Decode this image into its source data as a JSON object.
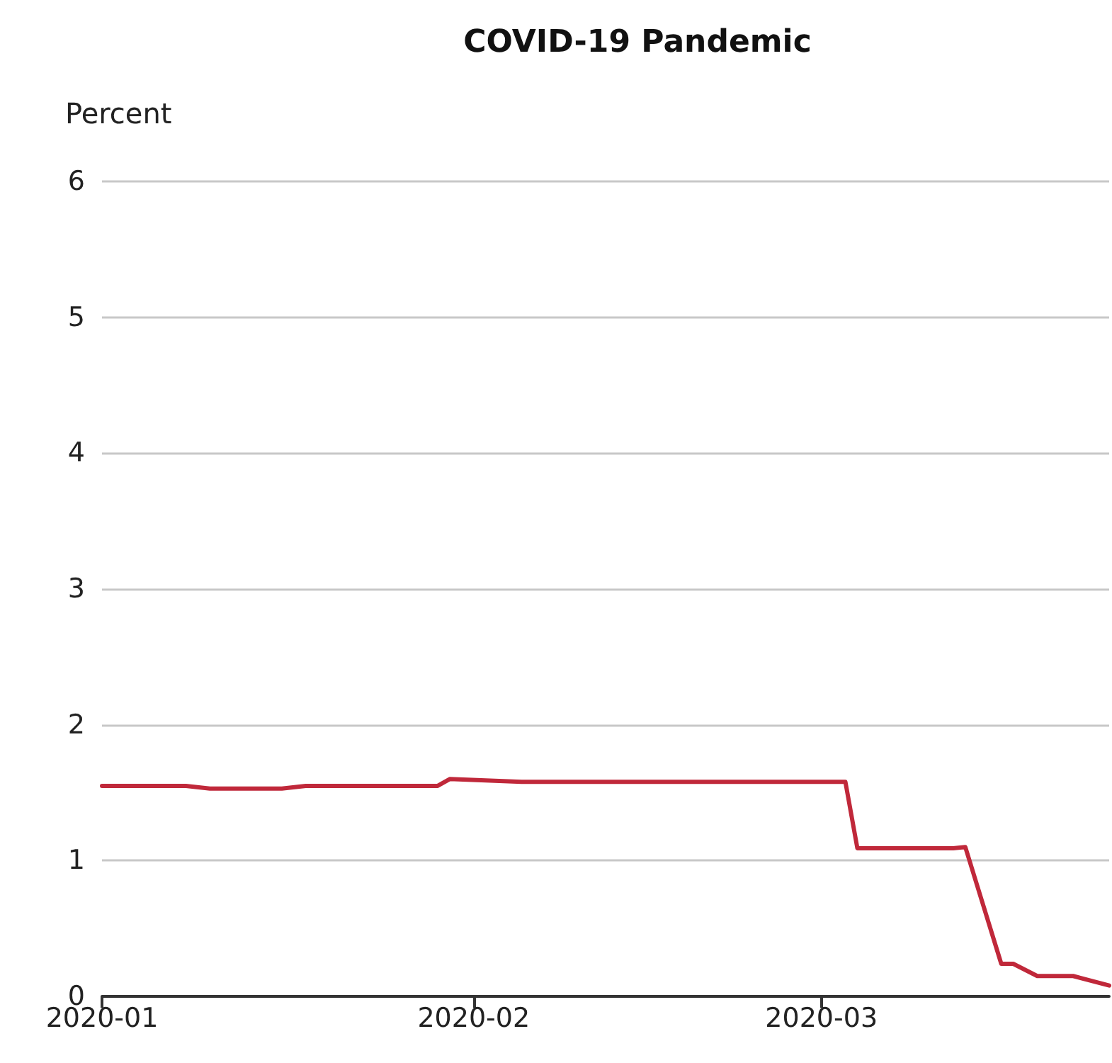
{
  "chart_data": {
    "type": "line",
    "title": "COVID-19 Pandemic",
    "ylabel": "Percent",
    "x": [
      "2020-01-01",
      "2020-01-08",
      "2020-01-10",
      "2020-01-16",
      "2020-01-18",
      "2020-01-29",
      "2020-01-30",
      "2020-02-05",
      "2020-02-20",
      "2020-03-03",
      "2020-03-04",
      "2020-03-12",
      "2020-03-13",
      "2020-03-16",
      "2020-03-17",
      "2020-03-19",
      "2020-03-22",
      "2020-03-25"
    ],
    "series": [
      {
        "color": "#c0283a",
        "values": [
          1.55,
          1.55,
          1.53,
          1.53,
          1.55,
          1.55,
          1.6,
          1.58,
          1.58,
          1.58,
          1.09,
          1.09,
          1.1,
          0.24,
          0.24,
          0.15,
          0.15,
          0.08
        ]
      }
    ],
    "xlim": [
      "2020-01-01",
      "2020-03-25"
    ],
    "xticks": [
      "2020-01",
      "2020-02",
      "2020-03"
    ],
    "ylim": [
      0,
      6
    ],
    "yticks": [
      0,
      1,
      2,
      3,
      4,
      5,
      6
    ],
    "grid": "y",
    "marker": "none",
    "line_style": "solid"
  }
}
